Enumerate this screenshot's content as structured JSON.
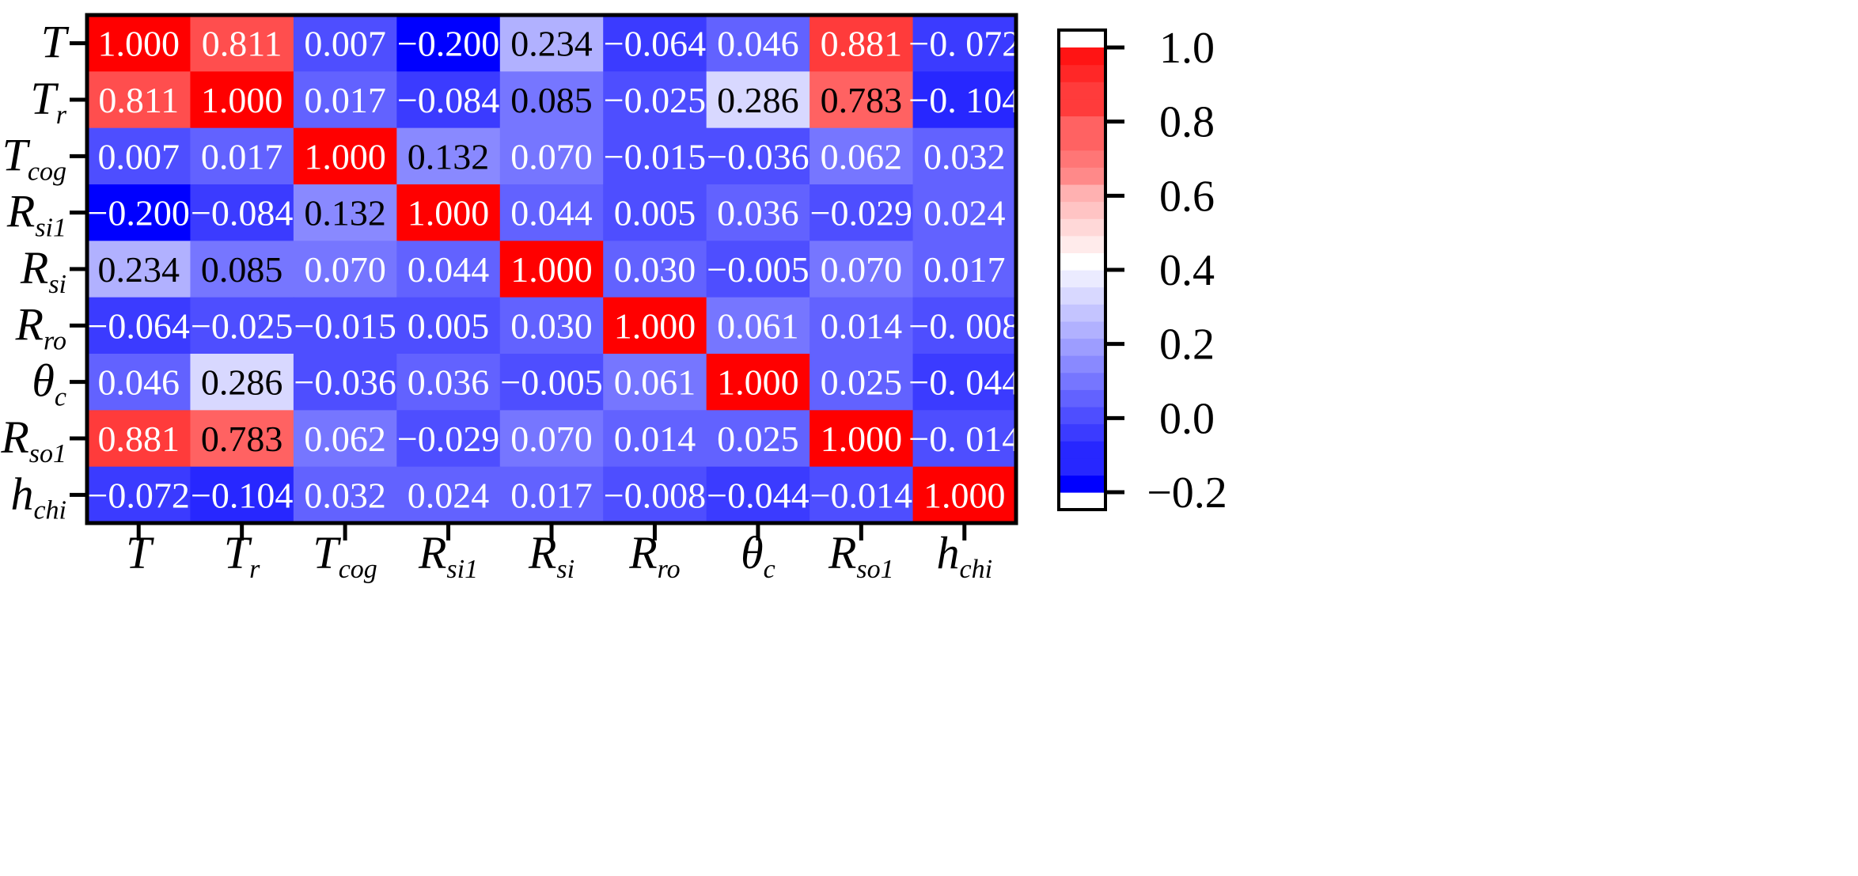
{
  "chart_data": {
    "type": "heatmap",
    "variables": [
      {
        "base": "T",
        "sub": ""
      },
      {
        "base": "T",
        "sub": "r"
      },
      {
        "base": "T",
        "sub": "cog"
      },
      {
        "base": "R",
        "sub": "si1"
      },
      {
        "base": "R",
        "sub": "si"
      },
      {
        "base": "R",
        "sub": "ro"
      },
      {
        "base": "θ",
        "sub": "c"
      },
      {
        "base": "R",
        "sub": "so1"
      },
      {
        "base": "h",
        "sub": "chi"
      }
    ],
    "values": [
      [
        1.0,
        0.811,
        0.007,
        -0.2,
        0.234,
        -0.064,
        0.046,
        0.881,
        -0.072
      ],
      [
        0.811,
        1.0,
        0.017,
        -0.084,
        0.085,
        -0.025,
        0.286,
        0.783,
        -0.104
      ],
      [
        0.007,
        0.017,
        1.0,
        0.132,
        0.07,
        -0.015,
        -0.036,
        0.062,
        0.032
      ],
      [
        -0.2,
        -0.084,
        0.132,
        1.0,
        0.044,
        0.005,
        0.036,
        -0.029,
        0.024
      ],
      [
        0.234,
        0.085,
        0.07,
        0.044,
        1.0,
        0.03,
        -0.005,
        0.07,
        0.017
      ],
      [
        -0.064,
        -0.025,
        -0.015,
        0.005,
        0.03,
        1.0,
        0.061,
        0.014,
        -0.008
      ],
      [
        0.046,
        0.286,
        -0.036,
        0.036,
        -0.005,
        0.061,
        1.0,
        0.025,
        -0.044
      ],
      [
        0.881,
        0.783,
        0.062,
        -0.029,
        0.07,
        0.014,
        0.025,
        1.0,
        -0.014
      ],
      [
        -0.072,
        -0.104,
        0.032,
        0.024,
        0.017,
        -0.008,
        -0.044,
        -0.014,
        1.0
      ]
    ],
    "cell_labels": [
      [
        "1.000",
        "0.811",
        "0.007",
        "−0.200",
        "0.234",
        "−0.064",
        "0.046",
        "0.881",
        "−0. 072"
      ],
      [
        "0.811",
        "1.000",
        "0.017",
        "−0.084",
        "0.085",
        "−0.025",
        "0.286",
        "0.783",
        "−0. 104"
      ],
      [
        "0.007",
        "0.017",
        "1.000",
        "0.132",
        "0.070",
        "−0.015",
        "−0.036",
        "0.062",
        "0.032"
      ],
      [
        "−0.200",
        "−0.084",
        "0.132",
        "1.000",
        "0.044",
        "0.005",
        "0.036",
        "−0.029",
        "0.024"
      ],
      [
        "0.234",
        "0.085",
        "0.070",
        "0.044",
        "1.000",
        "0.030",
        "−0.005",
        "0.070",
        "0.017"
      ],
      [
        "−0.064",
        "−0.025",
        "−0.015",
        "0.005",
        "0.030",
        "1.000",
        "0.061",
        "0.014",
        "−0. 008"
      ],
      [
        "0.046",
        "0.286",
        "−0.036",
        "0.036",
        "−0.005",
        "0.061",
        "1.000",
        "0.025",
        "−0. 044"
      ],
      [
        "0.881",
        "0.783",
        "0.062",
        "−0.029",
        "0.070",
        "0.014",
        "0.025",
        "1.000",
        "−0. 014"
      ],
      [
        "−0.072",
        "−0.104",
        "0.032",
        "0.024",
        "0.017",
        "−0.008",
        "−0.044",
        "−0.014",
        "1.000"
      ]
    ],
    "colorbar": {
      "ticks": [
        -0.2,
        0.0,
        0.2,
        0.4,
        0.6,
        0.8,
        1.0
      ],
      "tick_labels": [
        "−0.2",
        "0.0",
        "0.2",
        "0.4",
        "0.6",
        "0.8",
        "1.0"
      ],
      "range": [
        -0.2,
        1.0
      ],
      "mid_value": 0.4,
      "low_color": "#0000ff",
      "mid_color": "#ffffff",
      "high_color": "#ff0000"
    },
    "dark_text_cells": [
      [
        0,
        4
      ],
      [
        1,
        4
      ],
      [
        1,
        6
      ],
      [
        1,
        7
      ],
      [
        2,
        3
      ],
      [
        3,
        2
      ],
      [
        4,
        0
      ],
      [
        4,
        1
      ],
      [
        6,
        1
      ],
      [
        7,
        1
      ]
    ],
    "grid": false,
    "legend": "right"
  }
}
